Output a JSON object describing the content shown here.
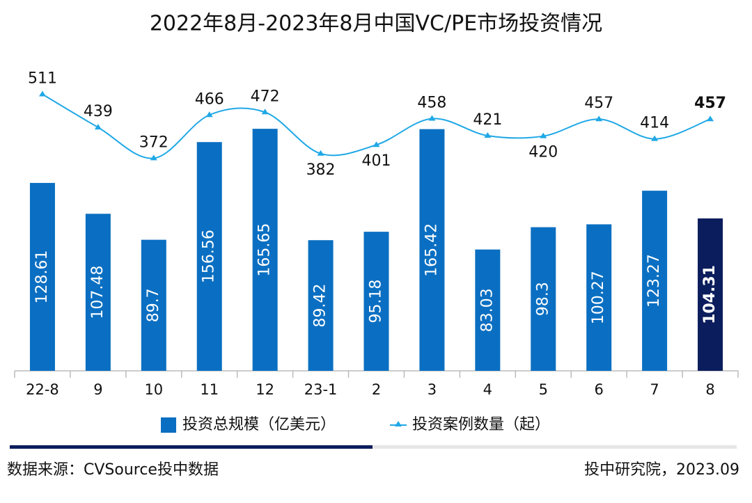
{
  "chart_data": {
    "type": "bar-line",
    "title": "2022年8月-2023年8月中国VC/PE市场投资情况",
    "categories": [
      "22-8",
      "9",
      "10",
      "11",
      "12",
      "23-1",
      "2",
      "3",
      "4",
      "5",
      "6",
      "7",
      "8"
    ],
    "series": [
      {
        "name": "投资总规模（亿美元）",
        "type": "bar",
        "color": "#0a6fc2",
        "colors": [
          "#0a6fc2",
          "#0a6fc2",
          "#0a6fc2",
          "#0a6fc2",
          "#0a6fc2",
          "#0a6fc2",
          "#0a6fc2",
          "#0a6fc2",
          "#0a6fc2",
          "#0a6fc2",
          "#0a6fc2",
          "#0a6fc2",
          "#0b1d5c"
        ],
        "values": [
          128.61,
          107.48,
          89.7,
          156.56,
          165.65,
          89.42,
          95.18,
          165.42,
          83.03,
          98.3,
          100.27,
          123.27,
          104.31
        ]
      },
      {
        "name": "投资案例数量（起）",
        "type": "line",
        "axis": "y2",
        "color": "#1fa8e6",
        "values": [
          511,
          439,
          372,
          466,
          472,
          382,
          401,
          458,
          421,
          420,
          457,
          414,
          457
        ]
      }
    ],
    "ylim": [
      0,
      200
    ],
    "y2lim": [
      -90,
      545
    ],
    "source": "数据来源：CVSource投中数据",
    "credit": "投中研究院，2023.09"
  }
}
